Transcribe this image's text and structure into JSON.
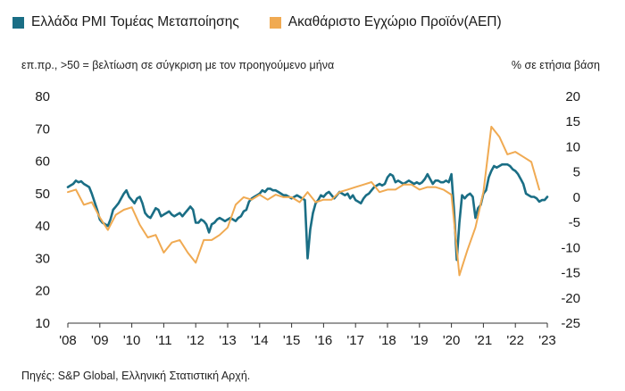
{
  "chart_data": {
    "type": "line",
    "title": "",
    "left_axis_note": "επ.πρ., >50 = βελτίωση σε σύγκριση με τον προηγούμενο μήνα",
    "right_axis_note": "% σε ετήσια βάση",
    "source": "Πηγές: S&P Global, Ελληνική Στατιστική Αρχή.",
    "x_ticks": [
      "'08",
      "'09",
      "'10",
      "'11",
      "'12",
      "'13",
      "'14",
      "'15",
      "'16",
      "'17",
      "'18",
      "'19",
      "'20",
      "'21",
      "'22",
      "'23"
    ],
    "x_range": [
      2008,
      2023
    ],
    "y_left": {
      "ticks": [
        10,
        20,
        30,
        40,
        50,
        60,
        70,
        80
      ],
      "range": [
        10,
        80
      ]
    },
    "y_right": {
      "ticks": [
        -25,
        -20,
        -15,
        -10,
        -5,
        0,
        5,
        10,
        15,
        20
      ],
      "range": [
        -25,
        20
      ]
    },
    "grid": false,
    "legend_position": "top-left",
    "series": [
      {
        "name": "Ελλάδα PMI Τομέας Μεταποίησης",
        "axis": "left",
        "color": "#1a6e85",
        "frequency": "monthly",
        "x_start": 2008.0,
        "values": [
          52.0,
          52.5,
          53.0,
          54.0,
          53.5,
          53.8,
          53.0,
          52.5,
          52.0,
          50.0,
          47.5,
          45.0,
          42.0,
          41.0,
          40.5,
          40.0,
          42.0,
          45.0,
          46.0,
          47.0,
          48.5,
          50.0,
          51.0,
          49.0,
          48.0,
          47.0,
          48.5,
          49.0,
          47.0,
          44.0,
          43.0,
          42.5,
          44.0,
          45.5,
          45.0,
          43.0,
          43.5,
          44.0,
          44.5,
          43.5,
          43.0,
          43.5,
          44.0,
          43.0,
          44.0,
          45.0,
          46.0,
          45.0,
          41.0,
          41.0,
          42.0,
          41.5,
          40.5,
          38.0,
          40.5,
          41.0,
          42.0,
          42.5,
          42.0,
          41.5,
          42.0,
          42.5,
          42.0,
          41.5,
          42.5,
          43.0,
          44.5,
          45.0,
          47.5,
          48.5,
          49.0,
          49.5,
          50.0,
          51.0,
          50.5,
          51.5,
          51.5,
          51.0,
          51.0,
          50.5,
          50.0,
          49.5,
          49.5,
          49.0,
          48.5,
          49.0,
          49.5,
          49.0,
          48.5,
          48.0,
          30.0,
          39.0,
          44.0,
          47.0,
          48.0,
          49.5,
          49.0,
          50.0,
          50.5,
          49.5,
          48.5,
          49.5,
          50.5,
          50.0,
          49.5,
          50.0,
          48.5,
          49.5,
          48.0,
          47.5,
          47.0,
          48.5,
          49.5,
          50.0,
          51.0,
          52.0,
          52.5,
          53.0,
          52.5,
          53.0,
          55.0,
          56.0,
          55.5,
          53.5,
          54.0,
          53.5,
          53.0,
          53.5,
          54.0,
          53.5,
          53.0,
          53.5,
          53.0,
          53.5,
          54.5,
          56.0,
          54.5,
          53.0,
          54.0,
          54.0,
          53.5,
          53.5,
          54.0,
          53.5,
          56.0,
          44.5,
          29.5,
          41.0,
          49.5,
          48.5,
          49.5,
          50.0,
          49.0,
          42.5,
          45.5,
          46.5,
          50.0,
          51.0,
          55.0,
          57.0,
          58.5,
          58.0,
          58.5,
          59.0,
          59.0,
          59.0,
          58.5,
          57.5,
          57.0,
          56.0,
          54.5,
          53.0,
          50.0,
          49.5,
          49.0,
          49.0,
          48.5,
          47.5,
          48.0,
          48.0,
          49.0
        ]
      },
      {
        "name": "Ακαθάριστο Εγχώριο Προϊόν(ΑΕΠ)",
        "axis": "right",
        "color": "#f0aa52",
        "frequency": "quarterly",
        "x_start": 2008.0,
        "values": [
          1.0,
          1.5,
          -1.5,
          -1.0,
          -4.0,
          -6.5,
          -3.5,
          -2.5,
          -2.0,
          -5.5,
          -8.0,
          -7.5,
          -11.0,
          -9.0,
          -8.5,
          -11.0,
          -13.0,
          -8.5,
          -8.5,
          -7.5,
          -6.0,
          -1.5,
          0.0,
          -0.5,
          0.5,
          -0.5,
          0.5,
          0.0,
          0.0,
          -1.0,
          1.0,
          -1.0,
          -0.5,
          -0.5,
          1.0,
          1.5,
          2.0,
          2.5,
          3.0,
          1.0,
          1.5,
          1.5,
          2.5,
          2.5,
          1.5,
          2.0,
          2.0,
          1.5,
          0.5,
          -15.5,
          -10.5,
          -6.0,
          1.0,
          14.0,
          12.0,
          8.5,
          9.0,
          8.0,
          7.0,
          1.5
        ]
      }
    ]
  }
}
